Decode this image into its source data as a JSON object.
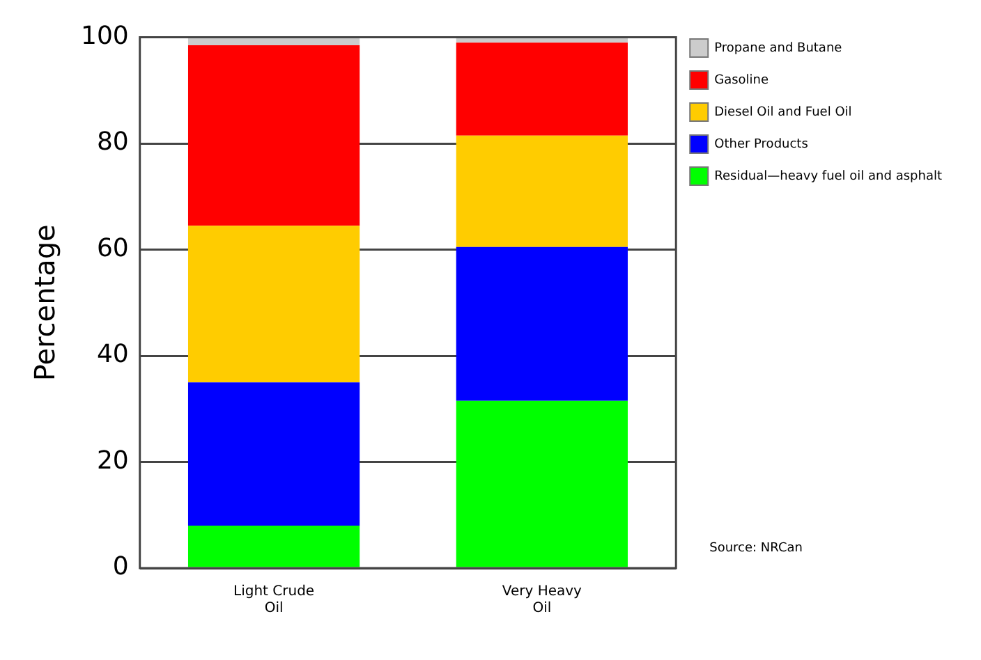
{
  "chart_data": {
    "type": "bar",
    "stacked": true,
    "ylabel": "Percentage",
    "categories": [
      "Light Crude\nOil",
      "Very Heavy\nOil"
    ],
    "series": [
      {
        "name": "Residual—heavy fuel oil and asphalt",
        "color": "#00ff00",
        "values": [
          8,
          31.5
        ]
      },
      {
        "name": "Other Products",
        "color": "#0000ff",
        "values": [
          27,
          29
        ]
      },
      {
        "name": "Diesel Oil and Fuel Oil",
        "color": "#ffcc00",
        "values": [
          29.5,
          21
        ]
      },
      {
        "name": "Gasoline",
        "color": "#ff0000",
        "values": [
          34,
          17.5
        ]
      },
      {
        "name": "Propane and Butane",
        "color": "#cccccc",
        "values": [
          1.5,
          1
        ]
      }
    ],
    "ylim": [
      0,
      100
    ],
    "yticks": [
      0,
      20,
      40,
      60,
      80,
      100
    ],
    "grid": "y",
    "legend": "top right",
    "annotations": [
      "Source: NRCan"
    ]
  }
}
